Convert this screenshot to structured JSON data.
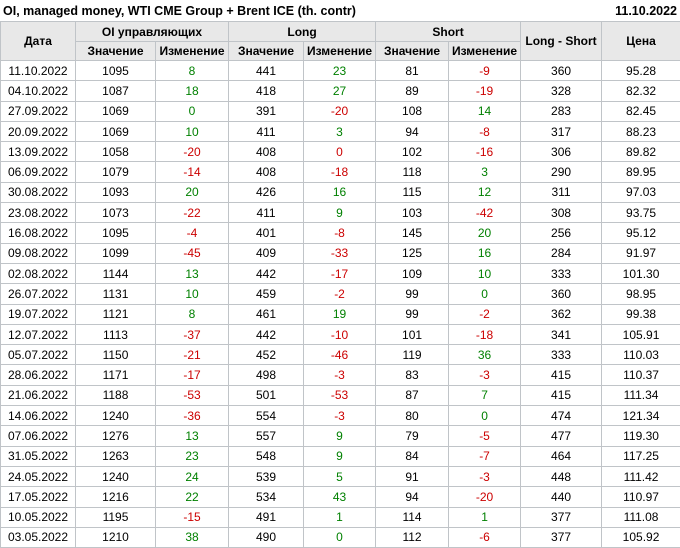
{
  "header": {
    "title": "OI, managed money, WTI CME Group + Brent ICE (th. contr)",
    "report_date": "11.10.2022"
  },
  "table": {
    "headers": {
      "date": "Дата",
      "oi_group": "OI управляющих",
      "long_group": "Long",
      "short_group": "Short",
      "long_short": "Long - Short",
      "price": "Цена",
      "value": "Значение",
      "change": "Изменение"
    },
    "colors": {
      "positive": "#008000",
      "negative": "#cc0000",
      "header_bg": "#e8e8e8",
      "grid": "#c0c4c8"
    },
    "rows": [
      {
        "date": "11.10.2022",
        "oi": "1095",
        "oi_chg": "8",
        "oi_chg_dir": "pos",
        "long": "441",
        "long_chg": "23",
        "long_chg_dir": "pos",
        "short": "81",
        "short_chg": "-9",
        "short_chg_dir": "neg",
        "long_short": "360",
        "price": "95.28"
      },
      {
        "date": "04.10.2022",
        "oi": "1087",
        "oi_chg": "18",
        "oi_chg_dir": "pos",
        "long": "418",
        "long_chg": "27",
        "long_chg_dir": "pos",
        "short": "89",
        "short_chg": "-19",
        "short_chg_dir": "neg",
        "long_short": "328",
        "price": "82.32"
      },
      {
        "date": "27.09.2022",
        "oi": "1069",
        "oi_chg": "0",
        "oi_chg_dir": "pos",
        "long": "391",
        "long_chg": "-20",
        "long_chg_dir": "neg",
        "short": "108",
        "short_chg": "14",
        "short_chg_dir": "pos",
        "long_short": "283",
        "price": "82.45"
      },
      {
        "date": "20.09.2022",
        "oi": "1069",
        "oi_chg": "10",
        "oi_chg_dir": "pos",
        "long": "411",
        "long_chg": "3",
        "long_chg_dir": "pos",
        "short": "94",
        "short_chg": "-8",
        "short_chg_dir": "neg",
        "long_short": "317",
        "price": "88.23"
      },
      {
        "date": "13.09.2022",
        "oi": "1058",
        "oi_chg": "-20",
        "oi_chg_dir": "neg",
        "long": "408",
        "long_chg": "0",
        "long_chg_dir": "neg",
        "short": "102",
        "short_chg": "-16",
        "short_chg_dir": "neg",
        "long_short": "306",
        "price": "89.82"
      },
      {
        "date": "06.09.2022",
        "oi": "1079",
        "oi_chg": "-14",
        "oi_chg_dir": "neg",
        "long": "408",
        "long_chg": "-18",
        "long_chg_dir": "neg",
        "short": "118",
        "short_chg": "3",
        "short_chg_dir": "pos",
        "long_short": "290",
        "price": "89.95"
      },
      {
        "date": "30.08.2022",
        "oi": "1093",
        "oi_chg": "20",
        "oi_chg_dir": "pos",
        "long": "426",
        "long_chg": "16",
        "long_chg_dir": "pos",
        "short": "115",
        "short_chg": "12",
        "short_chg_dir": "pos",
        "long_short": "311",
        "price": "97.03"
      },
      {
        "date": "23.08.2022",
        "oi": "1073",
        "oi_chg": "-22",
        "oi_chg_dir": "neg",
        "long": "411",
        "long_chg": "9",
        "long_chg_dir": "pos",
        "short": "103",
        "short_chg": "-42",
        "short_chg_dir": "neg",
        "long_short": "308",
        "price": "93.75"
      },
      {
        "date": "16.08.2022",
        "oi": "1095",
        "oi_chg": "-4",
        "oi_chg_dir": "neg",
        "long": "401",
        "long_chg": "-8",
        "long_chg_dir": "neg",
        "short": "145",
        "short_chg": "20",
        "short_chg_dir": "pos",
        "long_short": "256",
        "price": "95.12"
      },
      {
        "date": "09.08.2022",
        "oi": "1099",
        "oi_chg": "-45",
        "oi_chg_dir": "neg",
        "long": "409",
        "long_chg": "-33",
        "long_chg_dir": "neg",
        "short": "125",
        "short_chg": "16",
        "short_chg_dir": "pos",
        "long_short": "284",
        "price": "91.97"
      },
      {
        "date": "02.08.2022",
        "oi": "1144",
        "oi_chg": "13",
        "oi_chg_dir": "pos",
        "long": "442",
        "long_chg": "-17",
        "long_chg_dir": "neg",
        "short": "109",
        "short_chg": "10",
        "short_chg_dir": "pos",
        "long_short": "333",
        "price": "101.30"
      },
      {
        "date": "26.07.2022",
        "oi": "1131",
        "oi_chg": "10",
        "oi_chg_dir": "pos",
        "long": "459",
        "long_chg": "-2",
        "long_chg_dir": "neg",
        "short": "99",
        "short_chg": "0",
        "short_chg_dir": "pos",
        "long_short": "360",
        "price": "98.95"
      },
      {
        "date": "19.07.2022",
        "oi": "1121",
        "oi_chg": "8",
        "oi_chg_dir": "pos",
        "long": "461",
        "long_chg": "19",
        "long_chg_dir": "pos",
        "short": "99",
        "short_chg": "-2",
        "short_chg_dir": "neg",
        "long_short": "362",
        "price": "99.38"
      },
      {
        "date": "12.07.2022",
        "oi": "1113",
        "oi_chg": "-37",
        "oi_chg_dir": "neg",
        "long": "442",
        "long_chg": "-10",
        "long_chg_dir": "neg",
        "short": "101",
        "short_chg": "-18",
        "short_chg_dir": "neg",
        "long_short": "341",
        "price": "105.91"
      },
      {
        "date": "05.07.2022",
        "oi": "1150",
        "oi_chg": "-21",
        "oi_chg_dir": "neg",
        "long": "452",
        "long_chg": "-46",
        "long_chg_dir": "neg",
        "short": "119",
        "short_chg": "36",
        "short_chg_dir": "pos",
        "long_short": "333",
        "price": "110.03"
      },
      {
        "date": "28.06.2022",
        "oi": "1171",
        "oi_chg": "-17",
        "oi_chg_dir": "neg",
        "long": "498",
        "long_chg": "-3",
        "long_chg_dir": "neg",
        "short": "83",
        "short_chg": "-3",
        "short_chg_dir": "neg",
        "long_short": "415",
        "price": "110.37"
      },
      {
        "date": "21.06.2022",
        "oi": "1188",
        "oi_chg": "-53",
        "oi_chg_dir": "neg",
        "long": "501",
        "long_chg": "-53",
        "long_chg_dir": "neg",
        "short": "87",
        "short_chg": "7",
        "short_chg_dir": "pos",
        "long_short": "415",
        "price": "111.34"
      },
      {
        "date": "14.06.2022",
        "oi": "1240",
        "oi_chg": "-36",
        "oi_chg_dir": "neg",
        "long": "554",
        "long_chg": "-3",
        "long_chg_dir": "neg",
        "short": "80",
        "short_chg": "0",
        "short_chg_dir": "pos",
        "long_short": "474",
        "price": "121.34"
      },
      {
        "date": "07.06.2022",
        "oi": "1276",
        "oi_chg": "13",
        "oi_chg_dir": "pos",
        "long": "557",
        "long_chg": "9",
        "long_chg_dir": "pos",
        "short": "79",
        "short_chg": "-5",
        "short_chg_dir": "neg",
        "long_short": "477",
        "price": "119.30"
      },
      {
        "date": "31.05.2022",
        "oi": "1263",
        "oi_chg": "23",
        "oi_chg_dir": "pos",
        "long": "548",
        "long_chg": "9",
        "long_chg_dir": "pos",
        "short": "84",
        "short_chg": "-7",
        "short_chg_dir": "neg",
        "long_short": "464",
        "price": "117.25"
      },
      {
        "date": "24.05.2022",
        "oi": "1240",
        "oi_chg": "24",
        "oi_chg_dir": "pos",
        "long": "539",
        "long_chg": "5",
        "long_chg_dir": "pos",
        "short": "91",
        "short_chg": "-3",
        "short_chg_dir": "neg",
        "long_short": "448",
        "price": "111.42"
      },
      {
        "date": "17.05.2022",
        "oi": "1216",
        "oi_chg": "22",
        "oi_chg_dir": "pos",
        "long": "534",
        "long_chg": "43",
        "long_chg_dir": "pos",
        "short": "94",
        "short_chg": "-20",
        "short_chg_dir": "neg",
        "long_short": "440",
        "price": "110.97"
      },
      {
        "date": "10.05.2022",
        "oi": "1195",
        "oi_chg": "-15",
        "oi_chg_dir": "neg",
        "long": "491",
        "long_chg": "1",
        "long_chg_dir": "pos",
        "short": "114",
        "short_chg": "1",
        "short_chg_dir": "pos",
        "long_short": "377",
        "price": "111.08"
      },
      {
        "date": "03.05.2022",
        "oi": "1210",
        "oi_chg": "38",
        "oi_chg_dir": "pos",
        "long": "490",
        "long_chg": "0",
        "long_chg_dir": "pos",
        "short": "112",
        "short_chg": "-6",
        "short_chg_dir": "neg",
        "long_short": "377",
        "price": "105.92"
      }
    ]
  }
}
